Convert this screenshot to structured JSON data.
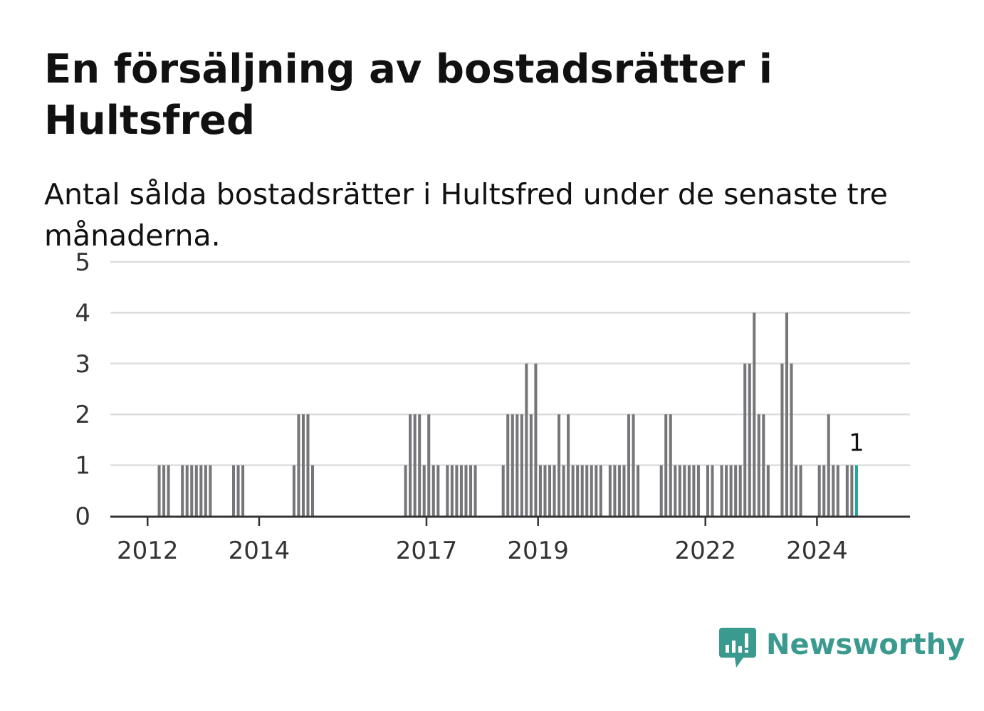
{
  "title": "En försäljning av bostadsrätter i Hultsfred",
  "subtitle": "Antal sålda bostadsrätter i Hultsfred under de senaste tre månaderna.",
  "brand": {
    "name": "Newsworthy",
    "color": "#3b9a8f",
    "icon": "newsworthy-chart-bubble-icon"
  },
  "colors": {
    "bar": "#76767a",
    "highlight": "#1fa6a0",
    "grid": "#dddddd",
    "axis": "#333333"
  },
  "chart_data": {
    "type": "bar",
    "title": "En försäljning av bostadsrätter i Hultsfred",
    "subtitle": "Antal sålda bostadsrätter i Hultsfred under de senaste tre månaderna.",
    "xlabel": "",
    "ylabel": "",
    "ylim": [
      0,
      5
    ],
    "yticks": [
      0,
      1,
      2,
      3,
      4,
      5
    ],
    "xticks": [
      "2012",
      "2014",
      "2017",
      "2019",
      "2022",
      "2024"
    ],
    "xtick_values": [
      "2012-01",
      "2014-01",
      "2017-01",
      "2019-01",
      "2022-01",
      "2024-01"
    ],
    "x_range": [
      "2011-05",
      "2025-09"
    ],
    "grid": true,
    "legend": "none",
    "highlight_label": "1",
    "x": [
      "2012-03",
      "2012-04",
      "2012-05",
      "2012-08",
      "2012-09",
      "2012-10",
      "2012-11",
      "2012-12",
      "2013-01",
      "2013-02",
      "2013-07",
      "2013-08",
      "2013-09",
      "2014-08",
      "2014-09",
      "2014-10",
      "2014-11",
      "2014-12",
      "2016-08",
      "2016-09",
      "2016-10",
      "2016-11",
      "2016-12",
      "2017-01",
      "2017-02",
      "2017-03",
      "2017-05",
      "2017-06",
      "2017-07",
      "2017-08",
      "2017-09",
      "2017-10",
      "2017-11",
      "2018-05",
      "2018-06",
      "2018-07",
      "2018-08",
      "2018-09",
      "2018-10",
      "2018-11",
      "2018-12",
      "2019-01",
      "2019-02",
      "2019-03",
      "2019-04",
      "2019-05",
      "2019-06",
      "2019-07",
      "2019-08",
      "2019-09",
      "2019-10",
      "2019-11",
      "2019-12",
      "2020-01",
      "2020-02",
      "2020-04",
      "2020-05",
      "2020-06",
      "2020-07",
      "2020-08",
      "2020-09",
      "2020-10",
      "2021-03",
      "2021-04",
      "2021-05",
      "2021-06",
      "2021-07",
      "2021-08",
      "2021-09",
      "2021-10",
      "2021-11",
      "2022-01",
      "2022-02",
      "2022-04",
      "2022-05",
      "2022-06",
      "2022-07",
      "2022-08",
      "2022-09",
      "2022-10",
      "2022-11",
      "2022-12",
      "2023-01",
      "2023-02",
      "2023-05",
      "2023-06",
      "2023-07",
      "2023-08",
      "2023-09",
      "2024-01",
      "2024-02",
      "2024-03",
      "2024-04",
      "2024-05",
      "2024-07",
      "2024-08",
      "2024-09"
    ],
    "values": [
      1,
      1,
      1,
      1,
      1,
      1,
      1,
      1,
      1,
      1,
      1,
      1,
      1,
      1,
      2,
      2,
      2,
      1,
      1,
      2,
      2,
      2,
      1,
      2,
      1,
      1,
      1,
      1,
      1,
      1,
      1,
      1,
      1,
      1,
      2,
      2,
      2,
      2,
      3,
      2,
      3,
      1,
      1,
      1,
      1,
      2,
      1,
      2,
      1,
      1,
      1,
      1,
      1,
      1,
      1,
      1,
      1,
      1,
      1,
      2,
      2,
      1,
      1,
      2,
      2,
      1,
      1,
      1,
      1,
      1,
      1,
      1,
      1,
      1,
      1,
      1,
      1,
      1,
      3,
      3,
      4,
      2,
      2,
      1,
      3,
      4,
      3,
      1,
      1,
      1,
      1,
      2,
      1,
      1,
      1,
      1,
      1
    ],
    "highlight_index": 96
  }
}
